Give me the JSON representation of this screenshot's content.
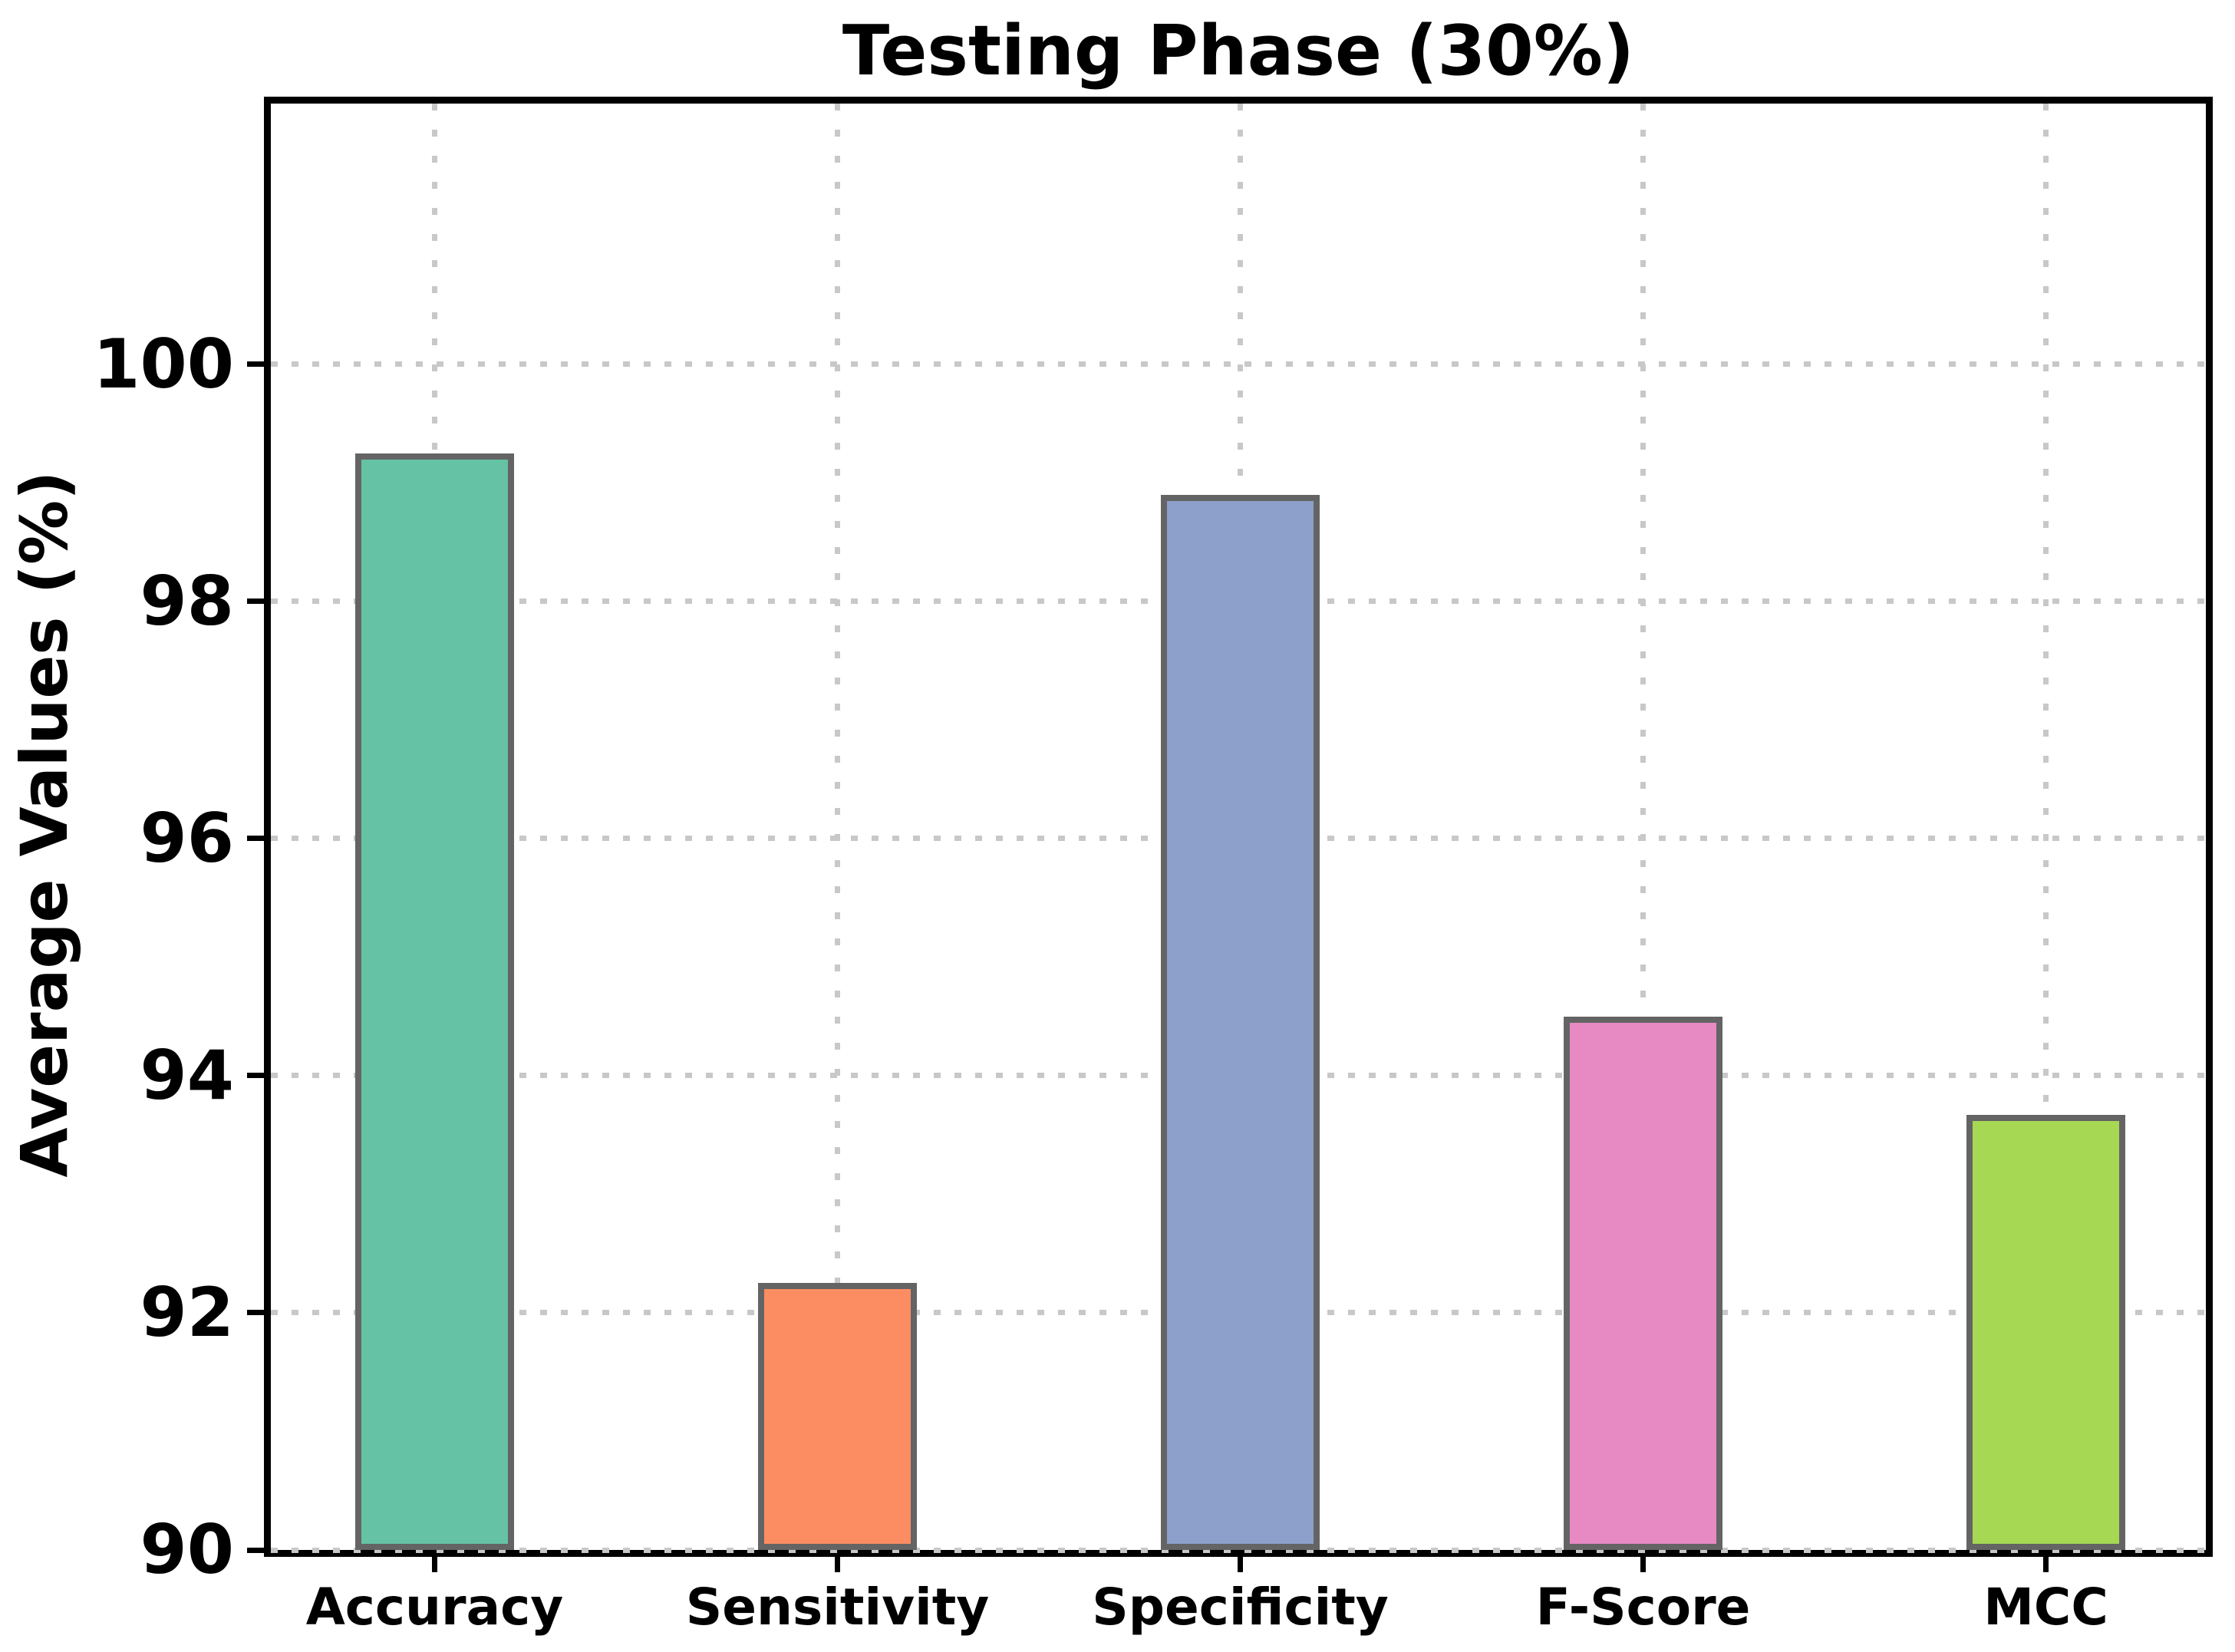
{
  "page": {
    "background": "#ffffff",
    "text_color": "#000000",
    "axis_color": "#000000"
  },
  "chart_data": {
    "type": "bar",
    "title": "Testing Phase (30%)",
    "ylabel": "Average Values (%)",
    "xlabel": "",
    "categories": [
      "Accuracy",
      "Sensitivity",
      "Specificity",
      "F-Score",
      "MCC"
    ],
    "values": [
      99.25,
      92.25,
      98.9,
      94.5,
      93.67
    ],
    "bar_colors": [
      "#66c2a5",
      "#fc8d62",
      "#8da0cb",
      "#e78ac3",
      "#a6d854"
    ],
    "bar_edge_color": "#646464",
    "ylim": [
      90,
      102.2
    ],
    "yticks": [
      90,
      92,
      94,
      96,
      98,
      100
    ],
    "grid": {
      "style": "dotted",
      "color": "#c8c8c8",
      "horizontal": true,
      "vertical": true
    },
    "legend": "none"
  }
}
